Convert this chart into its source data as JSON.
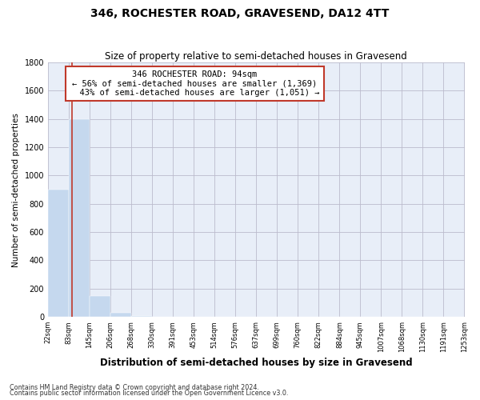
{
  "title": "346, ROCHESTER ROAD, GRAVESEND, DA12 4TT",
  "subtitle": "Size of property relative to semi-detached houses in Gravesend",
  "xlabel": "Distribution of semi-detached houses by size in Gravesend",
  "ylabel": "Number of semi-detached properties",
  "footer1": "Contains HM Land Registry data © Crown copyright and database right 2024.",
  "footer2": "Contains public sector information licensed under the Open Government Licence v3.0.",
  "property_size": 94,
  "property_label": "346 ROCHESTER ROAD: 94sqm",
  "pct_smaller": 56,
  "count_smaller": 1369,
  "pct_larger": 43,
  "count_larger": 1051,
  "bin_edges": [
    22,
    83,
    145,
    206,
    268,
    330,
    391,
    453,
    514,
    576,
    637,
    699,
    760,
    822,
    884,
    945,
    1007,
    1068,
    1130,
    1191,
    1253
  ],
  "bar_heights": [
    900,
    1400,
    145,
    30,
    5,
    0,
    0,
    0,
    0,
    0,
    0,
    0,
    0,
    0,
    0,
    0,
    0,
    0,
    0,
    0
  ],
  "bar_color": "#c5d8ee",
  "property_line_color": "#c0392b",
  "annotation_box_color": "#c0392b",
  "background_color": "#e8eef8",
  "ylim": [
    0,
    1800
  ],
  "title_fontsize": 10,
  "subtitle_fontsize": 8.5
}
